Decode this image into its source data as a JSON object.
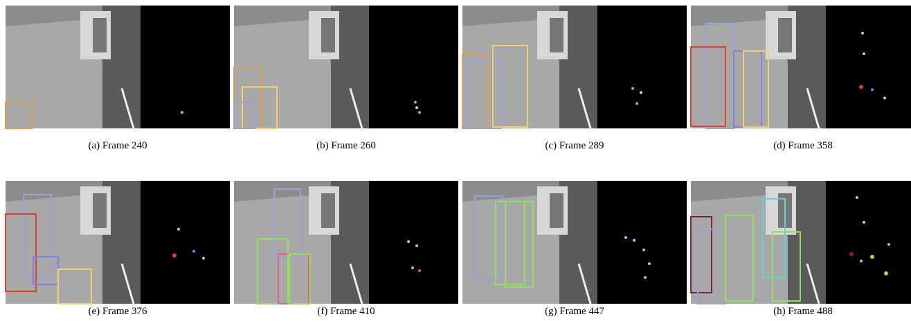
{
  "panels": [
    {
      "label": "(a)",
      "caption": "Frame 240"
    },
    {
      "label": "(b)",
      "caption": "Frame 260"
    },
    {
      "label": "(c)",
      "caption": "Frame 289"
    },
    {
      "label": "(d)",
      "caption": "Frame 358"
    },
    {
      "label": "(e)",
      "caption": "Frame 376"
    },
    {
      "label": "(f)",
      "caption": "Frame 410"
    },
    {
      "label": "(g)",
      "caption": "Frame 447"
    },
    {
      "label": "(h)",
      "caption": "Frame 488"
    }
  ]
}
